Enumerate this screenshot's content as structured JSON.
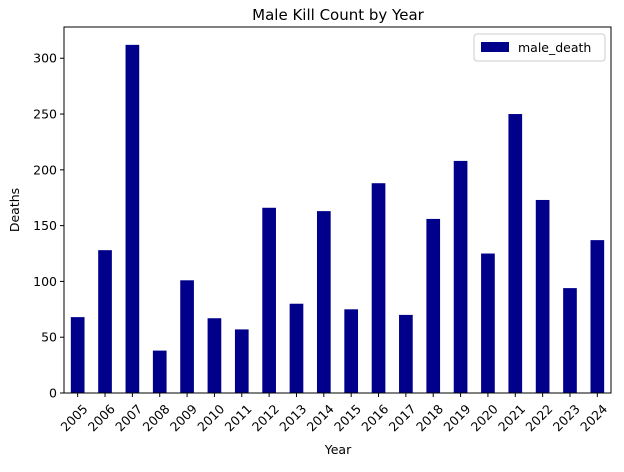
{
  "chart_data": {
    "type": "bar",
    "title": "Male Kill Count by Year",
    "xlabel": "Year",
    "ylabel": "Deaths",
    "categories": [
      "2005",
      "2006",
      "2007",
      "2008",
      "2009",
      "2010",
      "2011",
      "2012",
      "2013",
      "2014",
      "2015",
      "2016",
      "2017",
      "2018",
      "2019",
      "2020",
      "2021",
      "2022",
      "2023",
      "2024"
    ],
    "series": [
      {
        "name": "male_death",
        "color": "#00008b",
        "values": [
          68,
          128,
          312,
          38,
          101,
          67,
          57,
          166,
          80,
          163,
          75,
          188,
          70,
          156,
          208,
          125,
          250,
          173,
          94,
          137
        ]
      }
    ],
    "ylim": [
      0,
      328
    ],
    "yticks": [
      0,
      50,
      100,
      150,
      200,
      250,
      300
    ],
    "grid": false,
    "legend_position": "top-right"
  }
}
